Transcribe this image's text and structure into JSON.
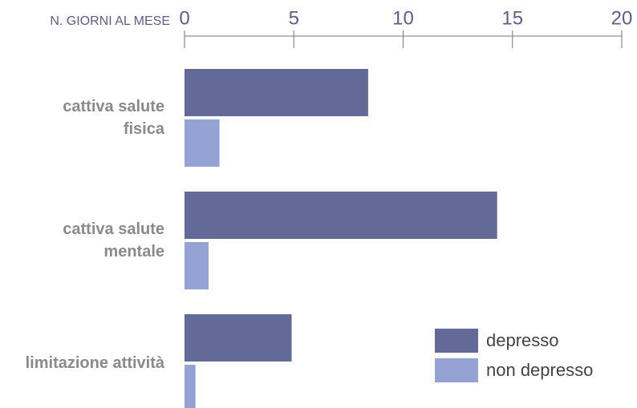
{
  "chart_data": {
    "type": "bar",
    "orientation": "horizontal",
    "x_label": "N. GIORNI AL MESE",
    "categories": [
      "cattiva salute fisica",
      "cattiva salute mentale",
      "limitazione attività"
    ],
    "series": [
      {
        "name": "depresso",
        "color": "#636a98",
        "values": [
          8.4,
          14.3,
          4.9
        ]
      },
      {
        "name": "non depresso",
        "color": "#94a3d4",
        "values": [
          1.6,
          1.1,
          0.5
        ]
      }
    ],
    "xlim": [
      0,
      20
    ],
    "xticks": [
      0,
      5,
      10,
      15,
      20
    ],
    "legend": "lower right"
  }
}
